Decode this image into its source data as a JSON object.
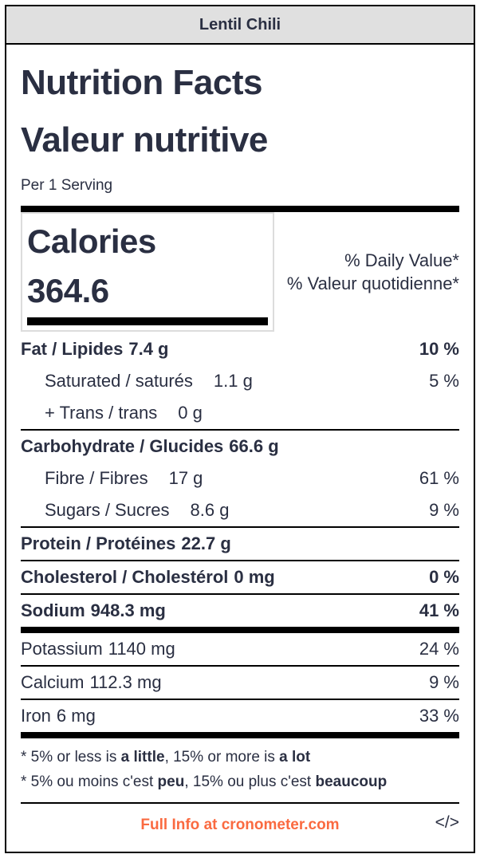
{
  "window": {
    "title": "Lentil Chili"
  },
  "label": {
    "title_en": "Nutrition Facts",
    "title_fr": "Valeur nutritive",
    "serving": "Per 1 Serving",
    "calories": {
      "word": "Calories",
      "value": "364.6"
    },
    "daily_value_en": "% Daily Value*",
    "daily_value_fr": "% Valeur quotidienne*",
    "rows": [
      {
        "label": "Fat / Lipides",
        "amount": "7.4 g",
        "dv": "10 %",
        "bold": true,
        "indent": false,
        "divider_after": "none"
      },
      {
        "label": "Saturated / saturés",
        "amount": "1.1 g",
        "dv": "5 %",
        "bold": false,
        "indent": true,
        "divider_after": "none"
      },
      {
        "label": "+ Trans / trans",
        "amount": "0 g",
        "dv": "",
        "bold": false,
        "indent": true,
        "divider_after": "thin"
      },
      {
        "label": "Carbohydrate / Glucides",
        "amount": "66.6 g",
        "dv": "",
        "bold": true,
        "indent": false,
        "divider_after": "none"
      },
      {
        "label": "Fibre / Fibres",
        "amount": "17 g",
        "dv": "61 %",
        "bold": false,
        "indent": true,
        "divider_after": "none"
      },
      {
        "label": "Sugars / Sucres",
        "amount": "8.6 g",
        "dv": "9 %",
        "bold": false,
        "indent": true,
        "divider_after": "thin"
      },
      {
        "label": "Protein / Protéines",
        "amount": "22.7 g",
        "dv": "",
        "bold": true,
        "indent": false,
        "divider_after": "thin"
      },
      {
        "label": "Cholesterol / Cholestérol",
        "amount": "0 mg",
        "dv": "0 %",
        "bold": true,
        "indent": false,
        "divider_after": "thin"
      },
      {
        "label": "Sodium",
        "amount": "948.3 mg",
        "dv": "41 %",
        "bold": true,
        "indent": false,
        "divider_after": "thick"
      },
      {
        "label": "Potassium",
        "amount": "1140 mg",
        "dv": "24 %",
        "bold": false,
        "indent": false,
        "divider_after": "thin"
      },
      {
        "label": "Calcium",
        "amount": "112.3 mg",
        "dv": "9 %",
        "bold": false,
        "indent": false,
        "divider_after": "thin"
      },
      {
        "label": "Iron",
        "amount": "6 mg",
        "dv": "33 %",
        "bold": false,
        "indent": false,
        "divider_after": "thick"
      }
    ],
    "footnotes": [
      [
        {
          "text": "* 5% or less is ",
          "bold": false
        },
        {
          "text": "a little",
          "bold": true
        },
        {
          "text": ", 15% or more is ",
          "bold": false
        },
        {
          "text": "a lot",
          "bold": true
        }
      ],
      [
        {
          "text": "* 5% ou moins c'est ",
          "bold": false
        },
        {
          "text": "peu",
          "bold": true
        },
        {
          "text": ", 15% ou plus c'est ",
          "bold": false
        },
        {
          "text": "beaucoup",
          "bold": true
        }
      ]
    ]
  },
  "footer": {
    "link_text": "Full Info at cronometer.com",
    "code_icon": "</>"
  },
  "colors": {
    "accent_orange": "#fa6a40",
    "text_navy": "#2a2f42",
    "header_gray": "#e0e0e0",
    "calorie_box_border": "#dcdcdc"
  }
}
